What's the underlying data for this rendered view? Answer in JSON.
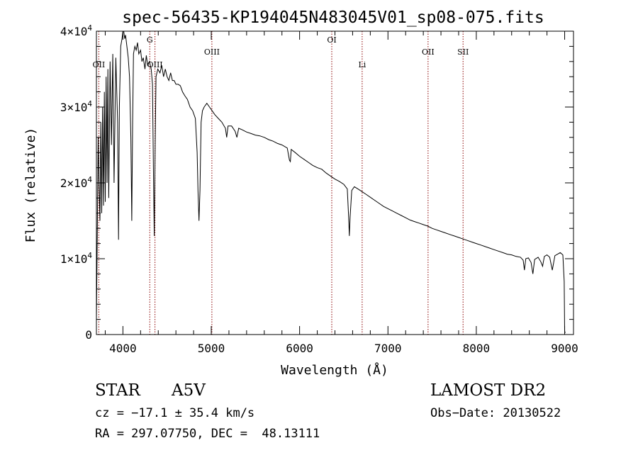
{
  "chart_data": {
    "type": "line",
    "title": "spec-56435-KP194045N483045V01_sp08-075.fits",
    "xlabel": "Wavelength (Å)",
    "ylabel": "Flux (relative)",
    "xlim": [
      3700,
      9100
    ],
    "ylim": [
      0,
      40000
    ],
    "x_ticks": [
      4000,
      5000,
      6000,
      7000,
      8000,
      9000
    ],
    "y_ticks": [
      {
        "mantissa": "0",
        "exponent": ""
      },
      {
        "mantissa": "1×10",
        "exponent": "4"
      },
      {
        "mantissa": "2×10",
        "exponent": "4"
      },
      {
        "mantissa": "3×10",
        "exponent": "4"
      },
      {
        "mantissa": "4×10",
        "exponent": "4"
      }
    ],
    "line_color": "#000000",
    "marker_color": "#8b0000",
    "markers": [
      {
        "label": "OII",
        "x": 3727,
        "row": 2
      },
      {
        "label": "G",
        "x": 4304,
        "row": 0
      },
      {
        "label": "OIII",
        "x": 4363,
        "row": 2
      },
      {
        "label": "OIII",
        "x": 5007,
        "row": 1
      },
      {
        "label": "OI",
        "x": 6364,
        "row": 0
      },
      {
        "label": "Li",
        "x": 6708,
        "row": 2
      },
      {
        "label": "OII",
        "x": 7454,
        "row": 1
      },
      {
        "label": "SII",
        "x": 7850,
        "row": 1
      }
    ],
    "series": [
      {
        "points": [
          [
            3700,
            2000
          ],
          [
            3710,
            13000
          ],
          [
            3720,
            26000
          ],
          [
            3730,
            20000
          ],
          [
            3740,
            15000
          ],
          [
            3750,
            28000
          ],
          [
            3760,
            16000
          ],
          [
            3770,
            30000
          ],
          [
            3780,
            17000
          ],
          [
            3790,
            32000
          ],
          [
            3800,
            17500
          ],
          [
            3810,
            34000
          ],
          [
            3820,
            20000
          ],
          [
            3830,
            35000
          ],
          [
            3840,
            18000
          ],
          [
            3855,
            36000
          ],
          [
            3870,
            25000
          ],
          [
            3885,
            37000
          ],
          [
            3900,
            20000
          ],
          [
            3920,
            36500
          ],
          [
            3940,
            28000
          ],
          [
            3950,
            12500
          ],
          [
            3960,
            30000
          ],
          [
            3975,
            38000
          ],
          [
            3990,
            39000
          ],
          [
            4000,
            41000
          ],
          [
            4010,
            40500
          ],
          [
            4020,
            39000
          ],
          [
            4030,
            39500
          ],
          [
            4045,
            38000
          ],
          [
            4060,
            36500
          ],
          [
            4075,
            34000
          ],
          [
            4090,
            26000
          ],
          [
            4100,
            15000
          ],
          [
            4110,
            28000
          ],
          [
            4120,
            37000
          ],
          [
            4135,
            38000
          ],
          [
            4150,
            37500
          ],
          [
            4165,
            38500
          ],
          [
            4180,
            37000
          ],
          [
            4200,
            37500
          ],
          [
            4215,
            36000
          ],
          [
            4230,
            36500
          ],
          [
            4250,
            35000
          ],
          [
            4265,
            36800
          ],
          [
            4280,
            35500
          ],
          [
            4300,
            36000
          ],
          [
            4320,
            35000
          ],
          [
            4335,
            33000
          ],
          [
            4345,
            22000
          ],
          [
            4355,
            13000
          ],
          [
            4365,
            25000
          ],
          [
            4375,
            34000
          ],
          [
            4395,
            35000
          ],
          [
            4420,
            34500
          ],
          [
            4440,
            35500
          ],
          [
            4460,
            34000
          ],
          [
            4480,
            35000
          ],
          [
            4500,
            34000
          ],
          [
            4520,
            33500
          ],
          [
            4540,
            34500
          ],
          [
            4560,
            33500
          ],
          [
            4580,
            33500
          ],
          [
            4600,
            33000
          ],
          [
            4625,
            33000
          ],
          [
            4650,
            32800
          ],
          [
            4675,
            32000
          ],
          [
            4700,
            31500
          ],
          [
            4730,
            31000
          ],
          [
            4760,
            30000
          ],
          [
            4790,
            29500
          ],
          [
            4820,
            28500
          ],
          [
            4840,
            24000
          ],
          [
            4850,
            19000
          ],
          [
            4861,
            15000
          ],
          [
            4872,
            19000
          ],
          [
            4885,
            28000
          ],
          [
            4900,
            29500
          ],
          [
            4920,
            30000
          ],
          [
            4950,
            30500
          ],
          [
            4980,
            30000
          ],
          [
            5010,
            29500
          ],
          [
            5040,
            29000
          ],
          [
            5080,
            28500
          ],
          [
            5120,
            28000
          ],
          [
            5160,
            27200
          ],
          [
            5175,
            26000
          ],
          [
            5190,
            27500
          ],
          [
            5230,
            27500
          ],
          [
            5270,
            26800
          ],
          [
            5290,
            26000
          ],
          [
            5310,
            27200
          ],
          [
            5350,
            27000
          ],
          [
            5400,
            26700
          ],
          [
            5450,
            26500
          ],
          [
            5500,
            26300
          ],
          [
            5550,
            26200
          ],
          [
            5600,
            26000
          ],
          [
            5650,
            25700
          ],
          [
            5700,
            25500
          ],
          [
            5750,
            25200
          ],
          [
            5800,
            25000
          ],
          [
            5860,
            24600
          ],
          [
            5885,
            23000
          ],
          [
            5895,
            22800
          ],
          [
            5905,
            24400
          ],
          [
            5950,
            24000
          ],
          [
            6000,
            23500
          ],
          [
            6050,
            23100
          ],
          [
            6100,
            22700
          ],
          [
            6150,
            22300
          ],
          [
            6200,
            22000
          ],
          [
            6250,
            21800
          ],
          [
            6300,
            21300
          ],
          [
            6350,
            20900
          ],
          [
            6400,
            20500
          ],
          [
            6450,
            20200
          ],
          [
            6500,
            19800
          ],
          [
            6540,
            19200
          ],
          [
            6555,
            15500
          ],
          [
            6563,
            13000
          ],
          [
            6572,
            15500
          ],
          [
            6590,
            19000
          ],
          [
            6620,
            19500
          ],
          [
            6660,
            19200
          ],
          [
            6700,
            18900
          ],
          [
            6750,
            18500
          ],
          [
            6800,
            18100
          ],
          [
            6850,
            17700
          ],
          [
            6900,
            17300
          ],
          [
            6950,
            16900
          ],
          [
            7000,
            16600
          ],
          [
            7050,
            16300
          ],
          [
            7100,
            16000
          ],
          [
            7150,
            15700
          ],
          [
            7200,
            15400
          ],
          [
            7250,
            15100
          ],
          [
            7300,
            14900
          ],
          [
            7350,
            14700
          ],
          [
            7400,
            14500
          ],
          [
            7450,
            14300
          ],
          [
            7500,
            14000
          ],
          [
            7550,
            13800
          ],
          [
            7600,
            13600
          ],
          [
            7650,
            13400
          ],
          [
            7700,
            13200
          ],
          [
            7750,
            13000
          ],
          [
            7800,
            12800
          ],
          [
            7850,
            12600
          ],
          [
            7900,
            12400
          ],
          [
            7950,
            12200
          ],
          [
            8000,
            12000
          ],
          [
            8050,
            11800
          ],
          [
            8100,
            11600
          ],
          [
            8150,
            11400
          ],
          [
            8200,
            11200
          ],
          [
            8250,
            11000
          ],
          [
            8300,
            10800
          ],
          [
            8350,
            10600
          ],
          [
            8400,
            10500
          ],
          [
            8450,
            10300
          ],
          [
            8500,
            10200
          ],
          [
            8530,
            9800
          ],
          [
            8545,
            8500
          ],
          [
            8560,
            10000
          ],
          [
            8590,
            10100
          ],
          [
            8620,
            9500
          ],
          [
            8640,
            8000
          ],
          [
            8660,
            9900
          ],
          [
            8700,
            10200
          ],
          [
            8730,
            9600
          ],
          [
            8750,
            9000
          ],
          [
            8770,
            10300
          ],
          [
            8800,
            10500
          ],
          [
            8830,
            10200
          ],
          [
            8860,
            8500
          ],
          [
            8890,
            10400
          ],
          [
            8920,
            10600
          ],
          [
            8950,
            10800
          ],
          [
            8980,
            10500
          ],
          [
            8995,
            7000
          ],
          [
            9000,
            500
          ],
          [
            9005,
            200
          ]
        ]
      }
    ]
  },
  "info": {
    "object_class": "STAR",
    "subclass": "A5V",
    "survey": "LAMOST DR2",
    "cz": "cz = −17.1 ± 35.4 km/s",
    "obs_date": "Obs−Date: 20130522",
    "coords": "RA = 297.07750, DEC =  48.13111"
  }
}
